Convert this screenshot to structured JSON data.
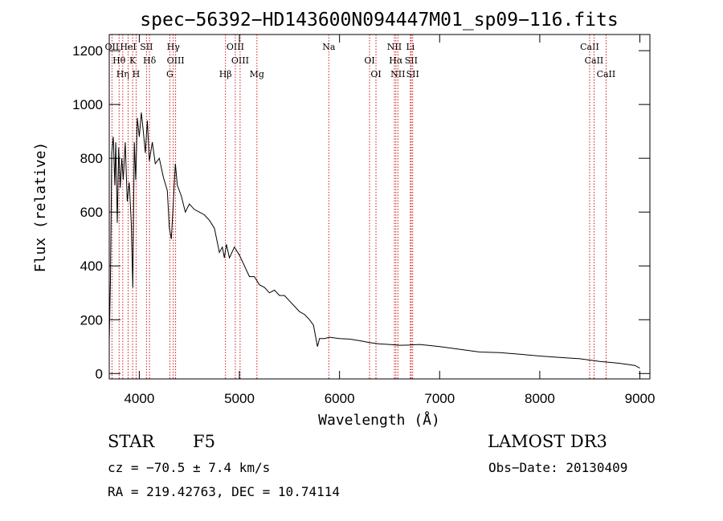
{
  "chart_data": {
    "type": "line",
    "title": "spec−56392−HD143600N094447M01_sp09−116.fits",
    "xlabel": "Wavelength (Å)",
    "ylabel": "Flux (relative)",
    "xlim": [
      3700,
      9100
    ],
    "ylim": [
      -20,
      1260
    ],
    "x_ticks": [
      4000,
      5000,
      6000,
      7000,
      8000,
      9000
    ],
    "y_ticks": [
      0,
      200,
      400,
      600,
      800,
      1000,
      1200
    ],
    "grid": false,
    "line_color": "#000000",
    "marker_color": "#cc0000",
    "series": [
      {
        "name": "flux",
        "x": [
          3700,
          3712,
          3725,
          3740,
          3755,
          3765,
          3780,
          3795,
          3810,
          3825,
          3840,
          3860,
          3880,
          3900,
          3920,
          3935,
          3950,
          3965,
          3980,
          4000,
          4020,
          4040,
          4060,
          4080,
          4100,
          4130,
          4160,
          4200,
          4240,
          4280,
          4300,
          4320,
          4340,
          4360,
          4380,
          4420,
          4460,
          4500,
          4550,
          4600,
          4650,
          4700,
          4750,
          4800,
          4830,
          4850,
          4870,
          4900,
          4950,
          5000,
          5050,
          5100,
          5150,
          5200,
          5250,
          5300,
          5350,
          5400,
          5450,
          5500,
          5550,
          5600,
          5650,
          5700,
          5740,
          5760,
          5780,
          5800,
          5850,
          5900,
          6000,
          6100,
          6200,
          6300,
          6400,
          6500,
          6600,
          6700,
          6800,
          6900,
          7000,
          7200,
          7400,
          7600,
          7800,
          8000,
          8200,
          8400,
          8600,
          8800,
          8950,
          9000
        ],
        "y": [
          120,
          350,
          820,
          880,
          700,
          860,
          560,
          840,
          690,
          800,
          720,
          860,
          640,
          710,
          560,
          320,
          860,
          720,
          950,
          880,
          970,
          900,
          820,
          940,
          790,
          860,
          780,
          800,
          730,
          680,
          540,
          500,
          640,
          780,
          700,
          660,
          600,
          630,
          610,
          600,
          590,
          570,
          540,
          450,
          470,
          430,
          480,
          430,
          470,
          440,
          400,
          360,
          360,
          330,
          320,
          300,
          310,
          290,
          290,
          270,
          250,
          230,
          220,
          200,
          180,
          140,
          100,
          130,
          130,
          135,
          130,
          128,
          122,
          115,
          110,
          108,
          105,
          106,
          108,
          104,
          100,
          90,
          80,
          78,
          72,
          65,
          60,
          55,
          45,
          38,
          30,
          20
        ]
      }
    ],
    "lines": [
      {
        "name": "OII",
        "wave": 3727
      },
      {
        "name": "Hθ",
        "wave": 3798
      },
      {
        "name": "Hη",
        "wave": 3835
      },
      {
        "name": "HeI",
        "wave": 3889
      },
      {
        "name": "K",
        "wave": 3934
      },
      {
        "name": "H",
        "wave": 3968
      },
      {
        "name": "SII",
        "wave": 4072
      },
      {
        "name": "Hδ",
        "wave": 4102
      },
      {
        "name": "G",
        "wave": 4305
      },
      {
        "name": "Hγ",
        "wave": 4340
      },
      {
        "name": "OIII",
        "wave": 4363
      },
      {
        "name": "Hβ",
        "wave": 4861
      },
      {
        "name": "OIII",
        "wave": 4959
      },
      {
        "name": "OIII",
        "wave": 5007
      },
      {
        "name": "Mg",
        "wave": 5175
      },
      {
        "name": "Na",
        "wave": 5893
      },
      {
        "name": "OI",
        "wave": 6300
      },
      {
        "name": "OI",
        "wave": 6364
      },
      {
        "name": "NII",
        "wave": 6548
      },
      {
        "name": "Hα",
        "wave": 6563
      },
      {
        "name": "NII",
        "wave": 6583
      },
      {
        "name": "Li",
        "wave": 6708
      },
      {
        "name": "SII",
        "wave": 6716
      },
      {
        "name": "SII",
        "wave": 6731
      },
      {
        "name": "CaII",
        "wave": 8498
      },
      {
        "name": "CaII",
        "wave": 8542
      },
      {
        "name": "CaII",
        "wave": 8662
      }
    ]
  },
  "info": {
    "class": "STAR",
    "subclass": "F5",
    "survey": "LAMOST DR3",
    "cz": "cz = −70.5 ± 7.4 km/s",
    "obs_date": "Obs−Date: 20130409",
    "coords": "RA = 219.42763, DEC =  10.74114"
  }
}
